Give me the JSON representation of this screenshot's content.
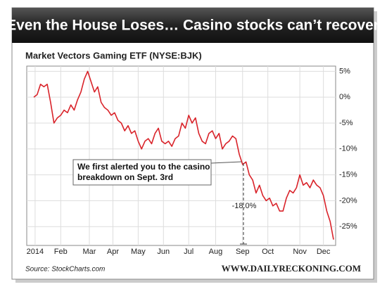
{
  "chart_data": {
    "type": "line",
    "title": "Even the House Loses… Casino stocks can’t recover",
    "subtitle": "Market Vectors Gaming ETF (NYSE:BJK)",
    "annotation": [
      "We first alerted you to the casino",
      "breakdown on Sept. 3rd"
    ],
    "drop_label": "-18.0%",
    "source": "Source: StockCharts.com",
    "credit": "WWW.DAILYRECKONING.COM",
    "grid": true,
    "series": [
      {
        "name": "BJK",
        "color": "#d9232a",
        "values": [
          0,
          0.5,
          2.5,
          2,
          2.5,
          -1,
          -5,
          -4,
          -3.5,
          -2.5,
          -3,
          -1.5,
          -2.5,
          -0.5,
          1,
          3.5,
          5,
          3,
          1,
          2,
          -1,
          -2,
          -2.5,
          -3.5,
          -3,
          -4.5,
          -5,
          -6.5,
          -5.5,
          -7,
          -6.5,
          -8.5,
          -10,
          -8.5,
          -8,
          -9,
          -7,
          -6,
          -8.5,
          -9,
          -8.5,
          -9.5,
          -8,
          -7.5,
          -5,
          -6,
          -3.5,
          -5,
          -4,
          -7,
          -8.5,
          -9,
          -7,
          -6.5,
          -8,
          -7,
          -10,
          -9,
          -8.5,
          -7.5,
          -8,
          -11,
          -13,
          -12.5,
          -15,
          -16,
          -18.5,
          -17,
          -19,
          -20,
          -19.5,
          -21,
          -20.5,
          -22,
          -22,
          -19.5,
          -18,
          -18.5,
          -17.5,
          -15,
          -17,
          -16.5,
          -17.5,
          -16,
          -17,
          -17.5,
          -19,
          -22,
          -24,
          -27.5
        ]
      }
    ],
    "xlim": [
      0,
      89
    ],
    "xticks": [
      {
        "value": 0.4,
        "label": "2014"
      },
      {
        "value": 8,
        "label": "Feb"
      },
      {
        "value": 16.5,
        "label": "Mar"
      },
      {
        "value": 23.5,
        "label": "Apr"
      },
      {
        "value": 31,
        "label": "May"
      },
      {
        "value": 38.5,
        "label": "Jun"
      },
      {
        "value": 46,
        "label": "Jul"
      },
      {
        "value": 54,
        "label": "Aug"
      },
      {
        "value": 62,
        "label": "Sep"
      },
      {
        "value": 69.5,
        "label": "Oct"
      },
      {
        "value": 79,
        "label": "Nov"
      },
      {
        "value": 86,
        "label": "Dec"
      }
    ],
    "ylim": [
      -28.5,
      6
    ],
    "yticks": [
      {
        "value": 5,
        "label": "5%"
      },
      {
        "value": 0,
        "label": "0%"
      },
      {
        "value": -5,
        "label": "-5%"
      },
      {
        "value": -10,
        "label": "-10%"
      },
      {
        "value": -15,
        "label": "-15%"
      },
      {
        "value": -20,
        "label": "-20%"
      },
      {
        "value": -25,
        "label": "-25%"
      }
    ]
  }
}
